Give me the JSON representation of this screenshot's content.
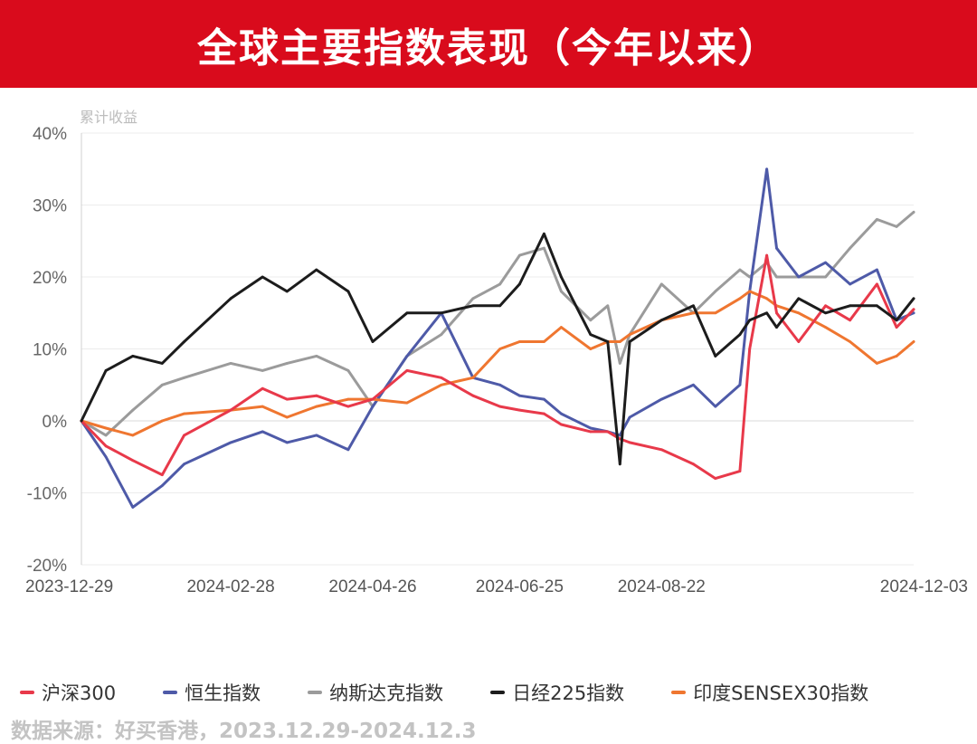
{
  "header": {
    "title": "全球主要指数表现（今年以来）"
  },
  "source_note": "数据来源：好买香港，2023.12.29-2024.12.3",
  "chart_data": {
    "type": "line",
    "title": "全球主要指数表现（今年以来）",
    "ylabel": "累计收益",
    "xlabel": "",
    "ylim": [
      -20,
      40
    ],
    "yticks": [
      40,
      30,
      20,
      10,
      0,
      -10,
      -20
    ],
    "ytick_labels": [
      "40%",
      "30%",
      "20%",
      "10%",
      "0%",
      "-10%",
      "-20%"
    ],
    "xtick_labels": [
      "2023-12-29",
      "2024-02-28",
      "2024-04-26",
      "2024-06-25",
      "2024-08-22",
      "2024-12-03"
    ],
    "x": [
      "2023-12-29",
      "2024-01-08",
      "2024-01-19",
      "2024-01-31",
      "2024-02-09",
      "2024-02-28",
      "2024-03-12",
      "2024-03-22",
      "2024-04-03",
      "2024-04-16",
      "2024-04-26",
      "2024-05-10",
      "2024-05-24",
      "2024-06-06",
      "2024-06-17",
      "2024-06-25",
      "2024-07-05",
      "2024-07-12",
      "2024-07-24",
      "2024-07-31",
      "2024-08-05",
      "2024-08-09",
      "2024-08-22",
      "2024-09-04",
      "2024-09-13",
      "2024-09-23",
      "2024-09-27",
      "2024-10-04",
      "2024-10-08",
      "2024-10-17",
      "2024-10-28",
      "2024-11-07",
      "2024-11-18",
      "2024-11-26",
      "2024-12-03"
    ],
    "series": [
      {
        "name": "沪深300",
        "color": "#e8394a",
        "values": [
          0,
          -3.5,
          -5.5,
          -7.5,
          -2,
          1.5,
          4.5,
          3,
          3.5,
          2,
          3,
          7,
          6,
          3.5,
          2,
          1.5,
          1,
          -0.5,
          -1.5,
          -1.5,
          -2.5,
          -3,
          -4,
          -6,
          -8,
          -7,
          10,
          23,
          15,
          11,
          16,
          14,
          19,
          13,
          15.5
        ]
      },
      {
        "name": "恒生指数",
        "color": "#4e5aa8",
        "values": [
          0,
          -5,
          -12,
          -9,
          -6,
          -3,
          -1.5,
          -3,
          -2,
          -4,
          2,
          9,
          15,
          6,
          5,
          3.5,
          3,
          1,
          -1,
          -1.5,
          -2,
          0.5,
          3,
          5,
          2,
          5,
          18,
          35,
          24,
          20,
          22,
          19,
          21,
          14,
          15
        ]
      },
      {
        "name": "纳斯达克指数",
        "color": "#9b9b9b",
        "values": [
          0,
          -2,
          1.5,
          5,
          6,
          8,
          7,
          8,
          9,
          7,
          2,
          9,
          12,
          17,
          19,
          23,
          24,
          18,
          14,
          16,
          8,
          12,
          19,
          15,
          18,
          21,
          20,
          22,
          20,
          20,
          20,
          24,
          28,
          27,
          29
        ]
      },
      {
        "name": "日经225指数",
        "color": "#1c1c1c",
        "values": [
          0,
          7,
          9,
          8,
          11,
          17,
          20,
          18,
          21,
          18,
          11,
          15,
          15,
          16,
          16,
          19,
          26,
          20,
          12,
          11,
          -6,
          11,
          14,
          16,
          9,
          12,
          14,
          15,
          13,
          17,
          15,
          16,
          16,
          14,
          17
        ]
      },
      {
        "name": "印度SENSEX30指数",
        "color": "#ef7630",
        "values": [
          0,
          -1,
          -2,
          0,
          1,
          1.5,
          2,
          0.5,
          2,
          3,
          3,
          2.5,
          5,
          6,
          10,
          11,
          11,
          13,
          10,
          11,
          11,
          12,
          14,
          15,
          15,
          17,
          18,
          17,
          16,
          15,
          13,
          11,
          8,
          9,
          11
        ]
      }
    ]
  }
}
